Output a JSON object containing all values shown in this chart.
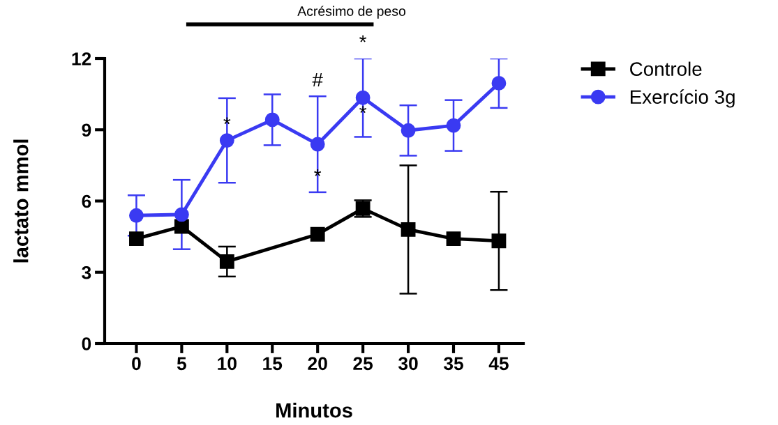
{
  "chart_data": {
    "type": "line",
    "xlabel": "Minutos",
    "ylabel": "lactato mmol",
    "categories": [
      "0",
      "5",
      "10",
      "15",
      "20",
      "25",
      "30",
      "35",
      "45"
    ],
    "ylim": [
      0,
      12
    ],
    "yticks": [
      0,
      3,
      6,
      9,
      12
    ],
    "grid": false,
    "legend": "top right",
    "line_style": "solid",
    "series": [
      {
        "name": "Controle",
        "color": "#000000",
        "marker": "square",
        "values": [
          4.41,
          4.93,
          3.45,
          null,
          4.6,
          5.68,
          4.8,
          4.41,
          4.32
        ],
        "errors": [
          null,
          null,
          0.63,
          null,
          null,
          0.35,
          2.7,
          null,
          2.07
        ]
      },
      {
        "name": "Exercício 3g",
        "color": "#3a3af2",
        "marker": "circle",
        "values": [
          5.39,
          5.43,
          8.55,
          9.42,
          8.39,
          10.35,
          8.97,
          9.18,
          10.96
        ],
        "errors": [
          0.85,
          1.46,
          1.78,
          1.07,
          2.02,
          1.65,
          1.06,
          1.07,
          1.04
        ]
      }
    ],
    "annotations": [
      "Acrésimo de peso",
      {
        "text": "*",
        "x": "10",
        "y": 8.55
      },
      {
        "text": "#",
        "x": "20",
        "y": 10.41
      },
      {
        "text": "*",
        "x": "20",
        "y": 6.36
      },
      {
        "text": "*",
        "x": "25",
        "y": 12
      },
      {
        "text": "*",
        "x": "25",
        "y": 10.35
      }
    ]
  }
}
